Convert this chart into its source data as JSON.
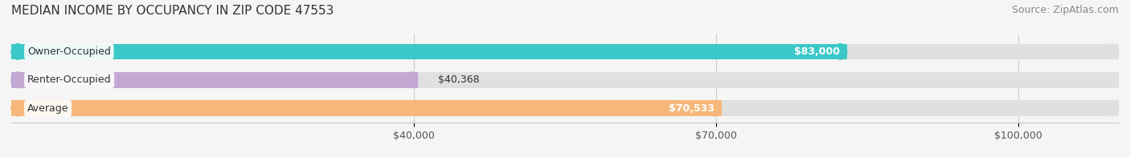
{
  "title": "MEDIAN INCOME BY OCCUPANCY IN ZIP CODE 47553",
  "source": "Source: ZipAtlas.com",
  "categories": [
    "Owner-Occupied",
    "Renter-Occupied",
    "Average"
  ],
  "values": [
    83000,
    40368,
    70533
  ],
  "bar_colors": [
    "#3cc8c8",
    "#c4a8d4",
    "#f5b87a"
  ],
  "bar_bg_color": "#e0e0e0",
  "label_values": [
    "$83,000",
    "$40,368",
    "$70,533"
  ],
  "x_ticks": [
    40000,
    70000,
    100000
  ],
  "x_tick_labels": [
    "$40,000",
    "$70,000",
    "$100,000"
  ],
  "x_min": 0,
  "x_max": 110000,
  "background_color": "#f5f5f5",
  "title_fontsize": 11,
  "source_fontsize": 9,
  "label_fontsize": 9,
  "tick_fontsize": 9
}
